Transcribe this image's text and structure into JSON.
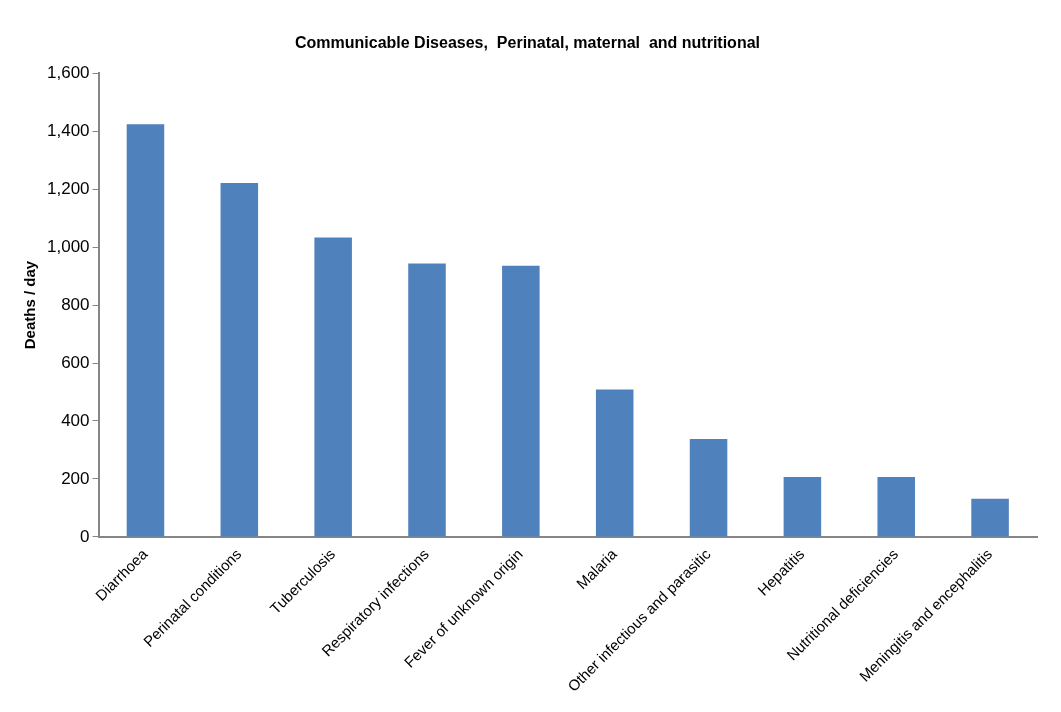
{
  "chart_data": {
    "type": "bar",
    "title": "Communicable Diseases,  Perinatal, maternal  and nutritional",
    "ylabel": "Deaths / day",
    "categories": [
      "Diarrhoea",
      "Perinatal conditions",
      "Tuberculosis",
      "Respiratory infections",
      "Fever of unknown origin",
      "Malaria",
      "Other infectious and parasitic",
      "Hepatitis",
      "Nutritional deficiencies",
      "Meningitis and encephalitis"
    ],
    "values": [
      1424,
      1221,
      1033,
      943,
      936,
      509,
      338,
      207,
      207,
      132
    ],
    "color": "#4f81bd",
    "ylim": [
      0,
      1600
    ],
    "yticks": [
      {
        "value": 0,
        "label": "0"
      },
      {
        "value": 200,
        "label": "200"
      },
      {
        "value": 400,
        "label": "400"
      },
      {
        "value": 600,
        "label": "600"
      },
      {
        "value": 800,
        "label": "800"
      },
      {
        "value": 1000,
        "label": "1,000"
      },
      {
        "value": 1200,
        "label": "1,200"
      },
      {
        "value": 1400,
        "label": "1,400"
      },
      {
        "value": 1600,
        "label": "1,600"
      }
    ],
    "grid": false,
    "legend": false
  }
}
